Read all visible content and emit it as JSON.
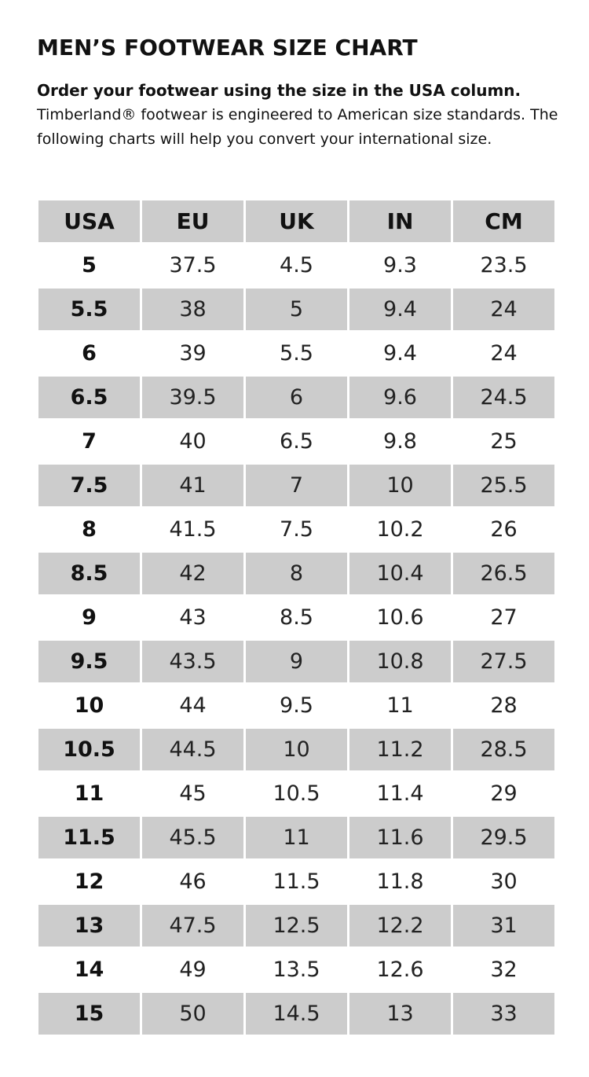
{
  "title": "MEN’S FOOTWEAR SIZE CHART",
  "subtitle_bold": "Order your footwear using the size in the USA column.",
  "description": "Timberland® footwear is engineered to American size standards. The following charts will help you convert your international size.",
  "colors": {
    "shade": "#cccccc",
    "text": "#111111"
  },
  "table": {
    "headers": [
      "USA",
      "EU",
      "UK",
      "IN",
      "CM"
    ],
    "rows": [
      [
        "5",
        "37.5",
        "4.5",
        "9.3",
        "23.5"
      ],
      [
        "5.5",
        "38",
        "5",
        "9.4",
        "24"
      ],
      [
        "6",
        "39",
        "5.5",
        "9.4",
        "24"
      ],
      [
        "6.5",
        "39.5",
        "6",
        "9.6",
        "24.5"
      ],
      [
        "7",
        "40",
        "6.5",
        "9.8",
        "25"
      ],
      [
        "7.5",
        "41",
        "7",
        "10",
        "25.5"
      ],
      [
        "8",
        "41.5",
        "7.5",
        "10.2",
        "26"
      ],
      [
        "8.5",
        "42",
        "8",
        "10.4",
        "26.5"
      ],
      [
        "9",
        "43",
        "8.5",
        "10.6",
        "27"
      ],
      [
        "9.5",
        "43.5",
        "9",
        "10.8",
        "27.5"
      ],
      [
        "10",
        "44",
        "9.5",
        "11",
        "28"
      ],
      [
        "10.5",
        "44.5",
        "10",
        "11.2",
        "28.5"
      ],
      [
        "11",
        "45",
        "10.5",
        "11.4",
        "29"
      ],
      [
        "11.5",
        "45.5",
        "11",
        "11.6",
        "29.5"
      ],
      [
        "12",
        "46",
        "11.5",
        "11.8",
        "30"
      ],
      [
        "13",
        "47.5",
        "12.5",
        "12.2",
        "31"
      ],
      [
        "14",
        "49",
        "13.5",
        "12.6",
        "32"
      ],
      [
        "15",
        "50",
        "14.5",
        "13",
        "33"
      ]
    ]
  }
}
